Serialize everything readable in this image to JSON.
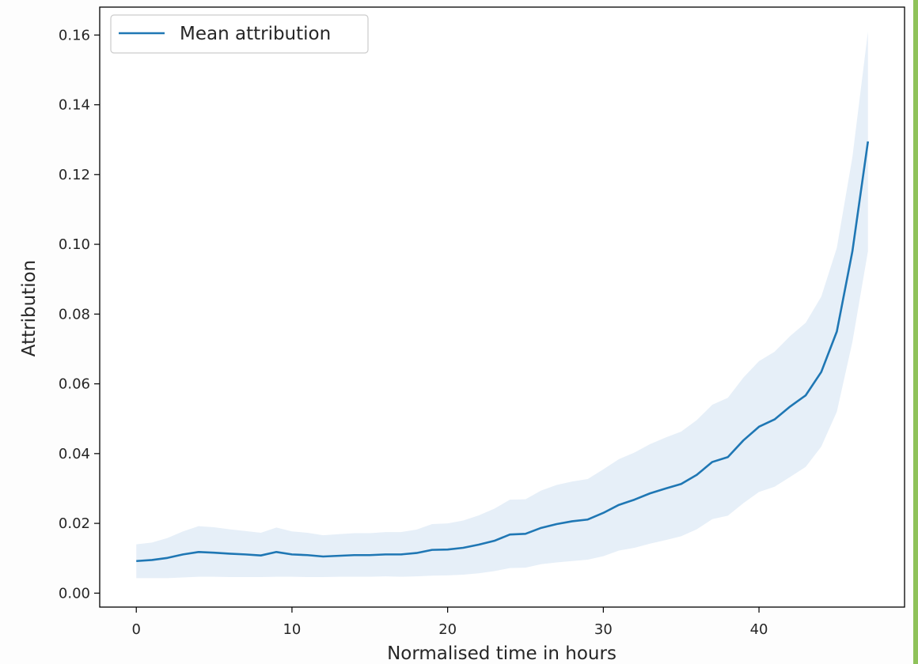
{
  "chart_data": {
    "type": "line",
    "title": "",
    "xlabel": "Normalised time in hours",
    "ylabel": "Attribution",
    "xlim": [
      -2.35,
      49.35
    ],
    "ylim": [
      -0.004,
      0.168
    ],
    "xticks": [
      0,
      10,
      20,
      30,
      40
    ],
    "xtick_labels": [
      "0",
      "10",
      "20",
      "30",
      "40"
    ],
    "yticks": [
      0.0,
      0.02,
      0.04,
      0.06,
      0.08,
      0.1,
      0.12,
      0.14,
      0.16
    ],
    "ytick_labels": [
      "0.00",
      "0.02",
      "0.04",
      "0.06",
      "0.08",
      "0.10",
      "0.12",
      "0.14",
      "0.16"
    ],
    "grid": false,
    "legend_position": "top-left",
    "colors": {
      "line": "#1f77b4",
      "band": "#e6eff8"
    },
    "series": [
      {
        "name": "Mean attribution",
        "x": [
          0,
          1,
          2,
          3,
          4,
          5,
          6,
          7,
          8,
          9,
          10,
          11,
          12,
          13,
          14,
          15,
          16,
          17,
          18,
          19,
          20,
          21,
          22,
          23,
          24,
          25,
          26,
          27,
          28,
          29,
          30,
          31,
          32,
          33,
          34,
          35,
          36,
          37,
          38,
          39,
          40,
          41,
          42,
          43,
          44,
          45,
          46,
          47
        ],
        "y": [
          0.0092,
          0.0095,
          0.0101,
          0.0111,
          0.0118,
          0.0116,
          0.0113,
          0.0111,
          0.0108,
          0.0118,
          0.0111,
          0.0109,
          0.0105,
          0.0107,
          0.0109,
          0.0109,
          0.0111,
          0.0111,
          0.0115,
          0.0124,
          0.0125,
          0.013,
          0.0139,
          0.015,
          0.0168,
          0.017,
          0.0187,
          0.0198,
          0.0206,
          0.0211,
          0.023,
          0.0253,
          0.0268,
          0.0286,
          0.03,
          0.0313,
          0.0339,
          0.0376,
          0.039,
          0.0438,
          0.0477,
          0.0498,
          0.0535,
          0.0567,
          0.0634,
          0.075,
          0.098,
          0.1295
        ],
        "lower": [
          0.0043,
          0.0043,
          0.0043,
          0.0045,
          0.0047,
          0.0047,
          0.0046,
          0.0046,
          0.0046,
          0.0047,
          0.0047,
          0.0046,
          0.0046,
          0.0047,
          0.0047,
          0.0047,
          0.0048,
          0.0047,
          0.0048,
          0.005,
          0.0051,
          0.0053,
          0.0057,
          0.0063,
          0.0072,
          0.0073,
          0.0083,
          0.0088,
          0.0092,
          0.0096,
          0.0106,
          0.0122,
          0.013,
          0.0142,
          0.0152,
          0.0163,
          0.0183,
          0.0212,
          0.0222,
          0.0258,
          0.029,
          0.0305,
          0.0333,
          0.0362,
          0.042,
          0.052,
          0.072,
          0.098
        ],
        "upper": [
          0.014,
          0.0145,
          0.0158,
          0.0177,
          0.0192,
          0.0189,
          0.0183,
          0.0178,
          0.0173,
          0.0188,
          0.0177,
          0.0173,
          0.0166,
          0.0169,
          0.0172,
          0.0172,
          0.0175,
          0.0175,
          0.0182,
          0.0198,
          0.02,
          0.0208,
          0.0223,
          0.0242,
          0.0268,
          0.0269,
          0.0294,
          0.031,
          0.032,
          0.0327,
          0.0355,
          0.0384,
          0.0403,
          0.0427,
          0.0446,
          0.0463,
          0.0496,
          0.054,
          0.056,
          0.0618,
          0.0665,
          0.0692,
          0.0737,
          0.0775,
          0.085,
          0.099,
          0.125,
          0.161
        ]
      }
    ]
  }
}
